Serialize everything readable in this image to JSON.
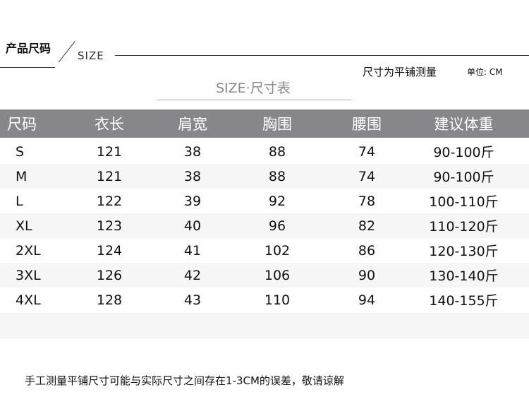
{
  "header": {
    "title_cn": "产品尺码",
    "title_en": "SIZE",
    "measure_note": "尺寸为平铺测量",
    "unit": "单位: CM"
  },
  "subtitle": "SIZE·尺寸表",
  "table": {
    "columns": [
      "尺码",
      "衣长",
      "肩宽",
      "胸围",
      "腰围",
      "建议体重"
    ],
    "rows": [
      [
        "S",
        "121",
        "38",
        "88",
        "74",
        "90-100斤"
      ],
      [
        "M",
        "121",
        "38",
        "88",
        "74",
        "90-100斤"
      ],
      [
        "L",
        "122",
        "39",
        "92",
        "78",
        "100-110斤"
      ],
      [
        "XL",
        "123",
        "40",
        "96",
        "82",
        "110-120斤"
      ],
      [
        "2XL",
        "124",
        "41",
        "102",
        "86",
        "120-130斤"
      ],
      [
        "3XL",
        "126",
        "42",
        "106",
        "90",
        "130-140斤"
      ],
      [
        "4XL",
        "128",
        "43",
        "110",
        "94",
        "140-155斤"
      ]
    ]
  },
  "footer": "手工测量平铺尺寸可能与实际尺寸之间存在1-3CM的误差，敬请谅解",
  "colors": {
    "header_bg": "#87868b",
    "stripe": "#f6f6f6"
  }
}
